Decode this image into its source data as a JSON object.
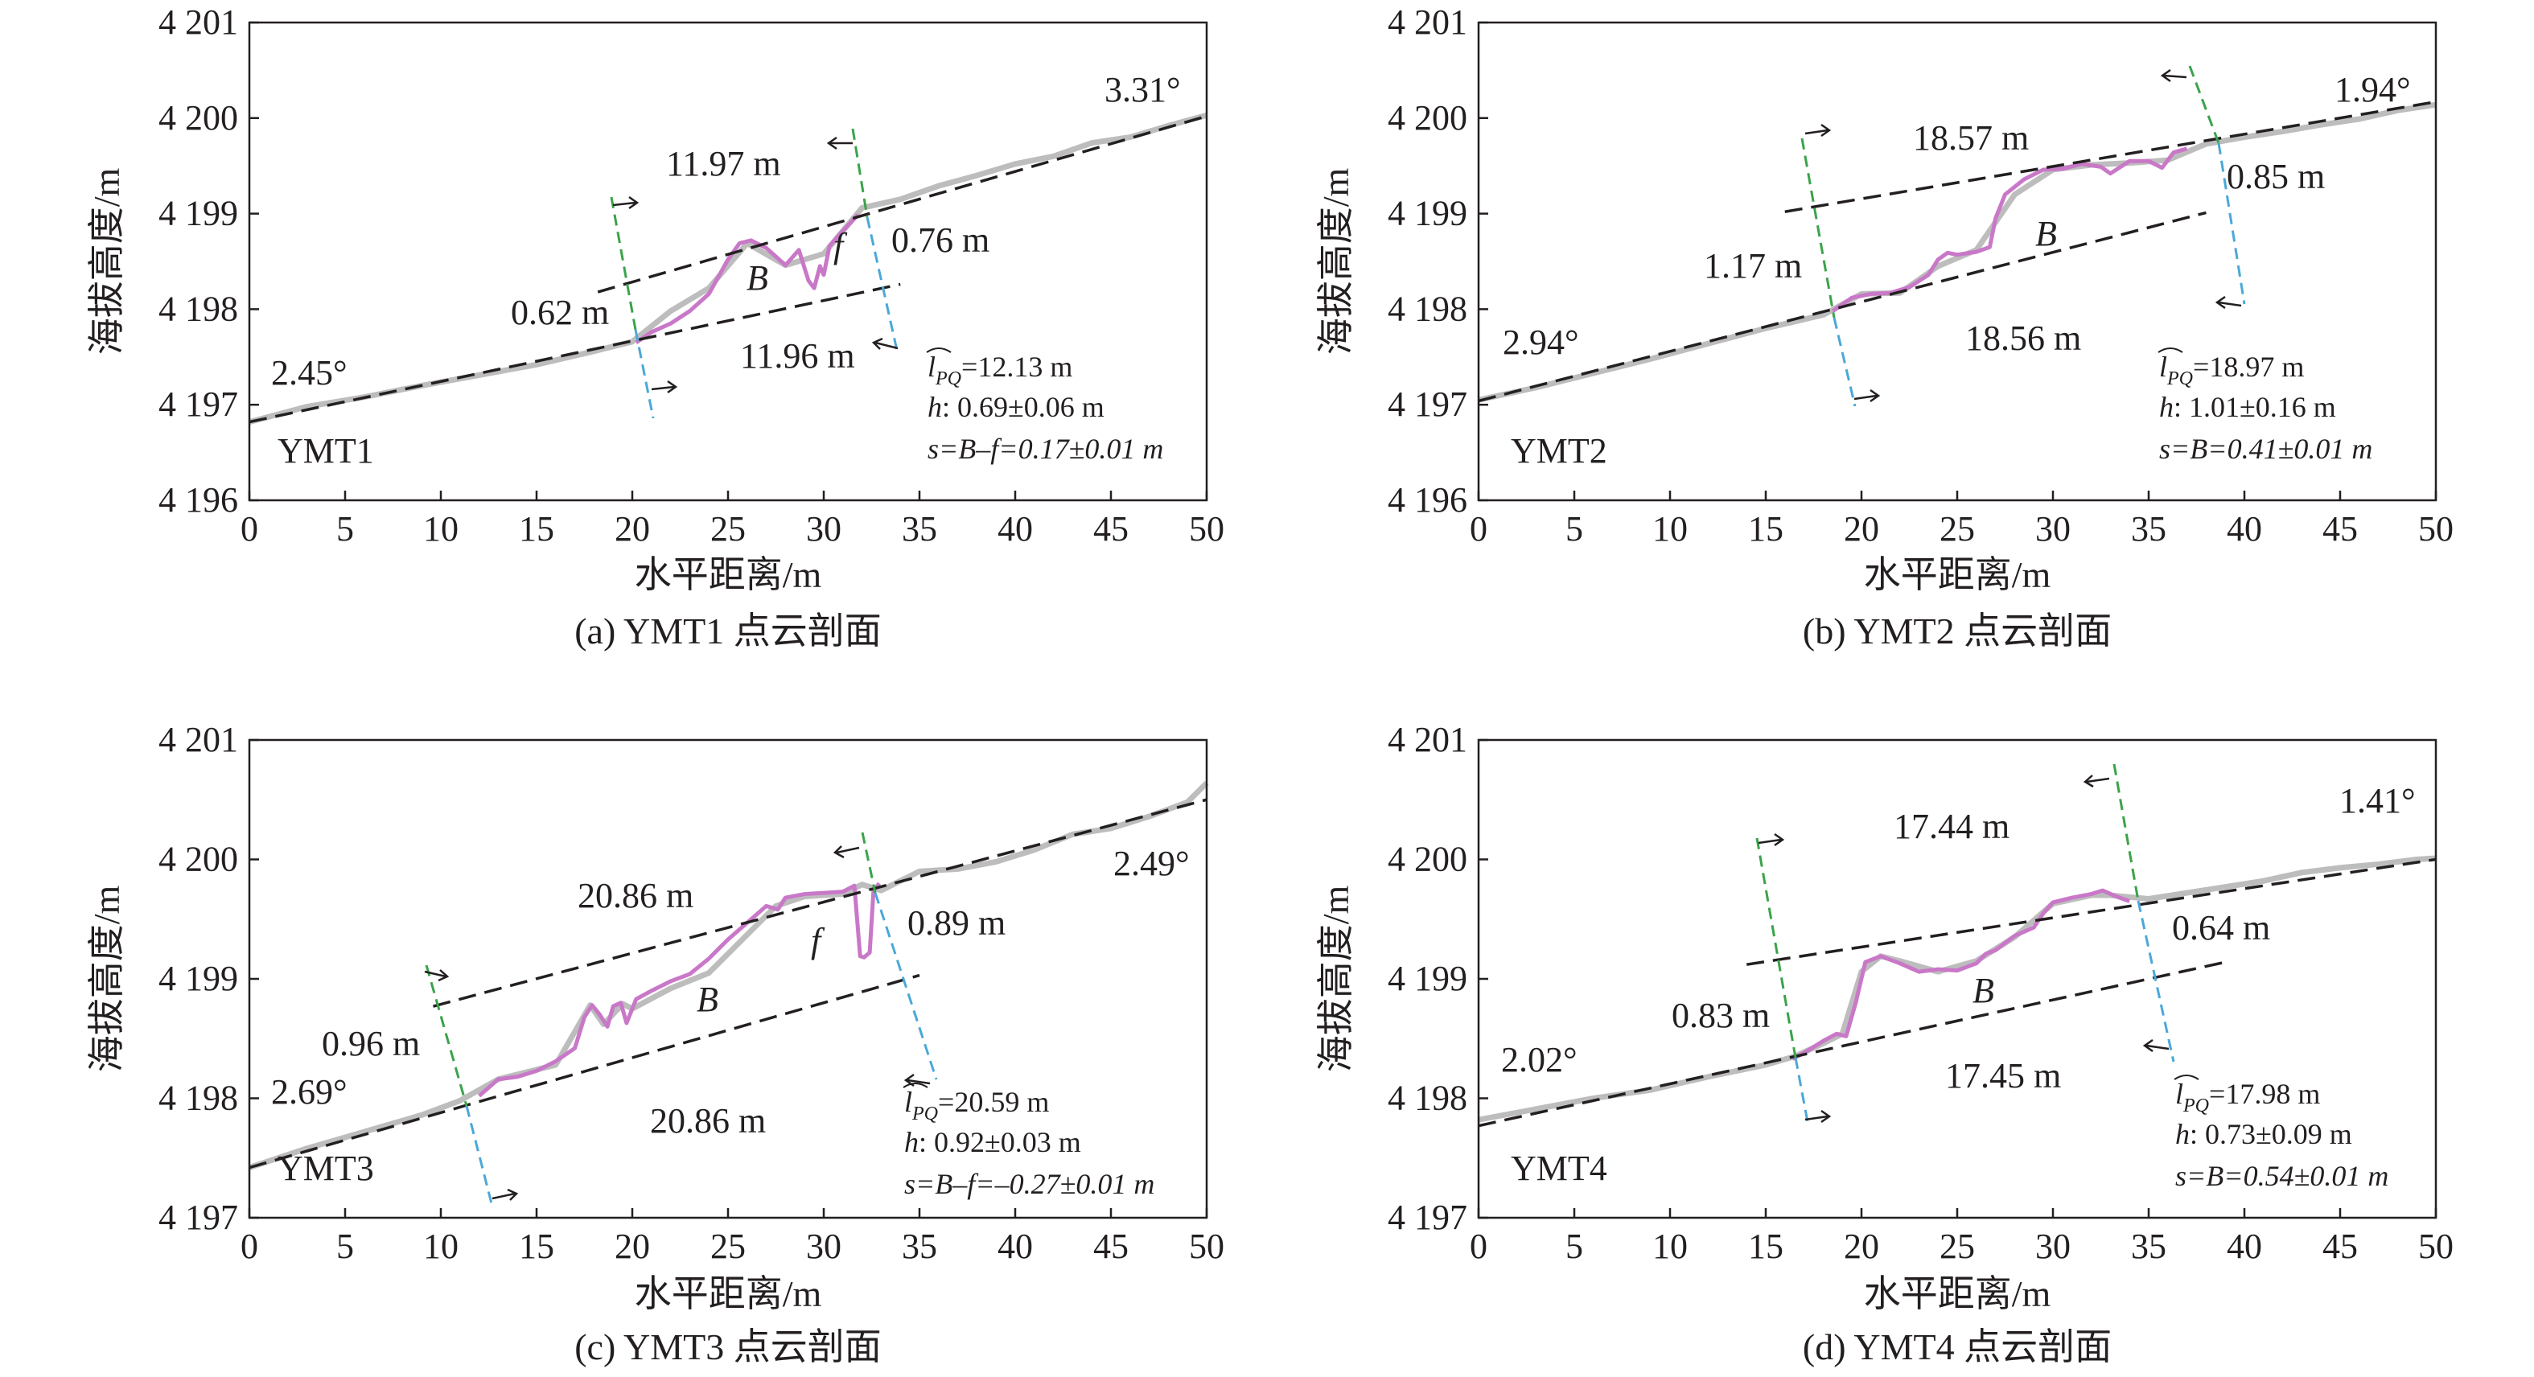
{
  "chart_data": [
    {
      "type": "line",
      "caption": "(a) YMT1 点云剖面",
      "site": "YMT1",
      "xlabel": "水平距离/m",
      "ylabel": "海拔高度/m",
      "xlim": [
        0,
        50
      ],
      "ylim": [
        4196,
        4201
      ],
      "xticks": [
        "0",
        "5",
        "10",
        "15",
        "20",
        "25",
        "30",
        "35",
        "40",
        "45",
        "50"
      ],
      "yticks": [
        "4 196",
        "4 197",
        "4 198",
        "4 199",
        "4 200",
        "4 201"
      ],
      "colors": {
        "profile": "#bdbdbd",
        "scarp": "#c978c8",
        "fit": "#231f20",
        "upper_bound": "#3aa34a",
        "lower_bound": "#4aa8d8"
      },
      "series": [
        {
          "role": "profile",
          "x": [
            0,
            3,
            6,
            9,
            12,
            15,
            18,
            20,
            22,
            24,
            26,
            28,
            30,
            32,
            34,
            36,
            38,
            40,
            42,
            44,
            46,
            48,
            50
          ],
          "y": [
            4196.82,
            4196.98,
            4197.08,
            4197.2,
            4197.31,
            4197.42,
            4197.56,
            4197.66,
            4197.98,
            4198.22,
            4198.69,
            4198.46,
            4198.58,
            4199.06,
            4199.15,
            4199.29,
            4199.4,
            4199.52,
            4199.6,
            4199.74,
            4199.8,
            4199.92,
            4200.03
          ]
        },
        {
          "role": "scarp",
          "x": [
            20.2,
            21,
            22,
            23,
            24,
            25,
            25.6,
            26.2,
            27,
            28,
            28.7,
            29.2,
            29.5,
            29.8,
            30,
            30.3,
            31,
            31.8
          ],
          "y": [
            4197.65,
            4197.76,
            4197.85,
            4197.98,
            4198.16,
            4198.52,
            4198.69,
            4198.72,
            4198.64,
            4198.46,
            4198.62,
            4198.3,
            4198.22,
            4198.45,
            4198.36,
            4198.66,
            4198.82,
            4198.99
          ]
        },
        {
          "role": "fit_lower",
          "x": [
            0,
            34
          ],
          "y": [
            4196.82,
            4198.26
          ]
        },
        {
          "role": "fit_upper",
          "x": [
            18.2,
            50
          ],
          "y": [
            4198.18,
            4200.02
          ]
        }
      ],
      "annotations": {
        "angle_left": "2.45°",
        "angle_right": "3.31°",
        "len_upper": "11.97 m",
        "len_lower": "11.96 m",
        "offset_left": "0.62 m",
        "offset_right": "0.76 m",
        "label_B": "B",
        "label_f": "f",
        "arc_prefix": "l",
        "arc_sub": "PQ",
        "arc_value": "=12.13 m",
        "h_prefix": "h",
        "h_value": ": 0.69±0.06 m",
        "s_formula": "s=B–f=0.17±0.01 m"
      }
    },
    {
      "type": "line",
      "caption": "(b) YMT2 点云剖面",
      "site": "YMT2",
      "xlabel": "水平距离/m",
      "ylabel": "海拔高度/m",
      "xlim": [
        0,
        50
      ],
      "ylim": [
        4196,
        4201
      ],
      "xticks": [
        "0",
        "5",
        "10",
        "15",
        "20",
        "25",
        "30",
        "35",
        "40",
        "45",
        "50"
      ],
      "yticks": [
        "4 196",
        "4 197",
        "4 198",
        "4 199",
        "4 200",
        "4 201"
      ],
      "colors": {
        "profile": "#bdbdbd",
        "scarp": "#c978c8",
        "fit": "#231f20",
        "upper_bound": "#3aa34a",
        "lower_bound": "#4aa8d8"
      },
      "series": [
        {
          "role": "profile",
          "x": [
            0,
            3,
            6,
            9,
            12,
            15,
            18,
            20,
            22,
            24,
            26,
            28,
            30,
            32,
            34,
            36,
            38,
            40,
            42,
            44,
            46,
            48,
            50
          ],
          "y": [
            4197.05,
            4197.18,
            4197.33,
            4197.48,
            4197.64,
            4197.8,
            4197.94,
            4198.16,
            4198.17,
            4198.45,
            4198.62,
            4199.2,
            4199.46,
            4199.51,
            4199.53,
            4199.56,
            4199.73,
            4199.8,
            4199.86,
            4199.93,
            4199.99,
            4200.08,
            4200.14
          ]
        },
        {
          "role": "scarp",
          "x": [
            18.5,
            19.5,
            20.5,
            21.5,
            22.5,
            23.5,
            24,
            24.5,
            25,
            26,
            26.7,
            27,
            27.5,
            28.5,
            29.5,
            30.5,
            31.5,
            32.5,
            33,
            34,
            35,
            35.7,
            36.3,
            37
          ],
          "y": [
            4197.98,
            4198.12,
            4198.16,
            4198.17,
            4198.23,
            4198.36,
            4198.52,
            4198.59,
            4198.57,
            4198.6,
            4198.65,
            4198.95,
            4199.2,
            4199.36,
            4199.46,
            4199.47,
            4199.52,
            4199.49,
            4199.42,
            4199.55,
            4199.55,
            4199.48,
            4199.64,
            4199.68
          ]
        },
        {
          "role": "fit_lower",
          "x": [
            0,
            38
          ],
          "y": [
            4197.04,
            4199.01
          ]
        },
        {
          "role": "fit_upper",
          "x": [
            16,
            50
          ],
          "y": [
            4199.02,
            4200.17
          ]
        }
      ],
      "annotations": {
        "angle_left": "2.94°",
        "angle_right": "1.94°",
        "len_upper": "18.57 m",
        "len_lower": "18.56 m",
        "offset_left": "1.17 m",
        "offset_right": "0.85 m",
        "label_B": "B",
        "arc_prefix": "l",
        "arc_sub": "PQ",
        "arc_value": "=18.97 m",
        "h_prefix": "h",
        "h_value": ": 1.01±0.16 m",
        "s_formula": "s=B=0.41±0.01 m"
      }
    },
    {
      "type": "line",
      "caption": "(c) YMT3 点云剖面",
      "site": "YMT3",
      "xlabel": "水平距离/m",
      "ylabel": "海拔高度/m",
      "xlim": [
        0,
        50
      ],
      "ylim": [
        4197,
        4201
      ],
      "xticks": [
        "0",
        "5",
        "10",
        "15",
        "20",
        "25",
        "30",
        "35",
        "40",
        "45",
        "50"
      ],
      "yticks": [
        "4 197",
        "4 198",
        "4 199",
        "4 200",
        "4 201"
      ],
      "colors": {
        "profile": "#bdbdbd",
        "scarp": "#c978c8",
        "fit": "#231f20",
        "upper_bound": "#3aa34a",
        "lower_bound": "#4aa8d8"
      },
      "series": [
        {
          "role": "profile",
          "x": [
            0,
            3,
            6,
            9,
            11,
            13,
            16,
            17.8,
            18.5,
            19.5,
            20,
            22,
            24,
            26,
            27.5,
            29,
            31,
            32,
            33,
            35,
            37,
            39,
            41,
            43,
            45,
            47,
            49,
            50
          ],
          "y": [
            4197.42,
            4197.58,
            4197.72,
            4197.86,
            4197.98,
            4198.16,
            4198.28,
            4198.78,
            4198.62,
            4198.79,
            4198.75,
            4198.92,
            4199.05,
            4199.37,
            4199.61,
            4199.69,
            4199.71,
            4199.79,
            4199.74,
            4199.9,
            4199.92,
            4199.98,
            4200.08,
            4200.21,
            4200.26,
            4200.36,
            4200.48,
            4200.64
          ]
        },
        {
          "role": "scarp",
          "x": [
            12,
            13,
            14,
            15,
            16,
            17,
            17.5,
            17.9,
            18.3,
            18.7,
            19,
            19.4,
            19.7,
            20.2,
            21,
            22,
            23,
            24,
            25,
            26,
            27,
            27.6,
            28,
            29,
            30,
            31,
            31.6,
            31.9,
            32.1,
            32.4,
            32.6,
            32.9
          ],
          "y": [
            4198.02,
            4198.16,
            4198.18,
            4198.23,
            4198.31,
            4198.42,
            4198.68,
            4198.78,
            4198.7,
            4198.6,
            4198.77,
            4198.8,
            4198.63,
            4198.83,
            4198.9,
            4198.98,
            4199.04,
            4199.17,
            4199.33,
            4199.47,
            4199.61,
            4199.58,
            4199.68,
            4199.71,
            4199.72,
            4199.73,
            4199.78,
            4199.19,
            4199.18,
            4199.22,
            4199.74,
            4199.8
          ]
        },
        {
          "role": "fit_lower",
          "x": [
            0,
            35
          ],
          "y": [
            4197.42,
            4199.03
          ]
        },
        {
          "role": "fit_upper",
          "x": [
            9.6,
            50
          ],
          "y": [
            4198.77,
            4200.5
          ]
        }
      ],
      "annotations": {
        "angle_left": "2.69°",
        "angle_right": "2.49°",
        "len_upper": "20.86 m",
        "len_lower": "20.86 m",
        "offset_left": "0.96 m",
        "offset_right": "0.89 m",
        "label_B": "B",
        "label_f": "f",
        "arc_prefix": "l",
        "arc_sub": "PQ",
        "arc_value": "=20.59 m",
        "h_prefix": "h",
        "h_value": ": 0.92±0.03 m",
        "s_formula": "s=B–f=–0.27±0.01 m"
      }
    },
    {
      "type": "line",
      "caption": "(d) YMT4 点云剖面",
      "site": "YMT4",
      "xlabel": "水平距离/m",
      "ylabel": "海拔高度/m",
      "xlim": [
        0,
        50
      ],
      "ylim": [
        4197,
        4201
      ],
      "xticks": [
        "0",
        "5",
        "10",
        "15",
        "20",
        "25",
        "30",
        "35",
        "40",
        "45",
        "50"
      ],
      "yticks": [
        "4 197",
        "4 198",
        "4 199",
        "4 200",
        "4 201"
      ],
      "colors": {
        "profile": "#bdbdbd",
        "scarp": "#c978c8",
        "fit": "#231f20",
        "upper_bound": "#3aa34a",
        "lower_bound": "#4aa8d8"
      },
      "series": [
        {
          "role": "profile",
          "x": [
            0,
            3,
            6,
            9,
            12,
            15,
            16.5,
            18,
            19,
            20,
            21,
            22,
            24,
            26,
            28,
            30,
            32,
            33,
            35,
            37,
            39,
            41,
            43,
            45,
            47,
            49,
            50
          ],
          "y": [
            4197.82,
            4197.91,
            4198.0,
            4198.07,
            4198.18,
            4198.28,
            4198.35,
            4198.46,
            4198.54,
            4199.06,
            4199.19,
            4199.15,
            4199.06,
            4199.15,
            4199.35,
            4199.63,
            4199.7,
            4199.7,
            4199.67,
            4199.72,
            4199.77,
            4199.82,
            4199.89,
            4199.93,
            4199.96,
            4200.0,
            4200.01
          ]
        },
        {
          "role": "scarp",
          "x": [
            16.4,
            17,
            18,
            18.7,
            19.2,
            19.7,
            20.2,
            21,
            22,
            23,
            24,
            25,
            26,
            26.5,
            27,
            28,
            29,
            29.5,
            30,
            31,
            32,
            32.6,
            33.3,
            34
          ],
          "y": [
            4198.33,
            4198.38,
            4198.48,
            4198.54,
            4198.52,
            4198.8,
            4199.14,
            4199.19,
            4199.13,
            4199.06,
            4199.08,
            4199.07,
            4199.13,
            4199.21,
            4199.24,
            4199.36,
            4199.43,
            4199.55,
            4199.64,
            4199.68,
            4199.71,
            4199.74,
            4199.69,
            4199.65
          ]
        },
        {
          "role": "fit_lower",
          "x": [
            0,
            39
          ],
          "y": [
            4197.77,
            4199.14
          ]
        },
        {
          "role": "fit_upper",
          "x": [
            14,
            50
          ],
          "y": [
            4199.12,
            4200.0
          ]
        }
      ],
      "annotations": {
        "angle_left": "2.02°",
        "angle_right": "1.41°",
        "len_upper": "17.44 m",
        "len_lower": "17.45 m",
        "offset_left": "0.83 m",
        "offset_right": "0.64 m",
        "label_B": "B",
        "arc_prefix": "l",
        "arc_sub": "PQ",
        "arc_value": "=17.98 m",
        "h_prefix": "h",
        "h_value": ": 0.73±0.09 m",
        "s_formula": "s=B=0.54±0.01 m"
      }
    }
  ]
}
